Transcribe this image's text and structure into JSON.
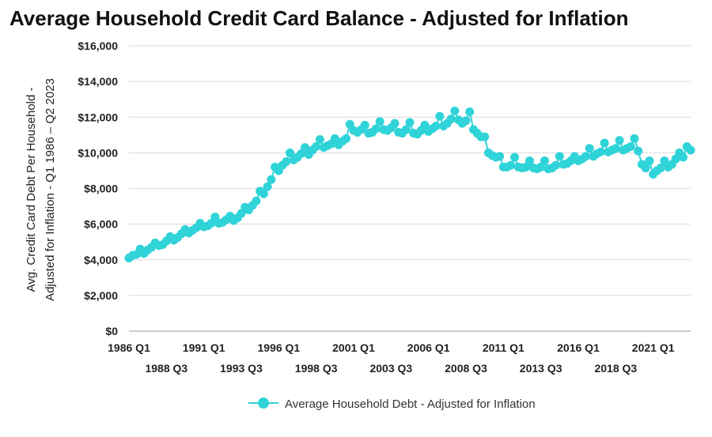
{
  "chart_data": {
    "type": "line",
    "title": "Average Household Credit Card Balance - Adjusted for Inflation",
    "ylabel_line1": "Avg. Credit Card Debt Per Household -",
    "ylabel_line2": "Adjusted for Inflation - Q1 1986 – Q2 2023",
    "xlabel": "",
    "ylim": [
      0,
      16000
    ],
    "yticks": [
      0,
      2000,
      4000,
      6000,
      8000,
      10000,
      12000,
      14000,
      16000
    ],
    "ytick_labels": [
      "$0",
      "$2,000",
      "$4,000",
      "$6,000",
      "$8,000",
      "$10,000",
      "$12,000",
      "$14,000",
      "$16,000"
    ],
    "xticks_upper": [
      {
        "label": "1986 Q1",
        "index": 0
      },
      {
        "label": "1991 Q1",
        "index": 20
      },
      {
        "label": "1996 Q1",
        "index": 40
      },
      {
        "label": "2001 Q1",
        "index": 60
      },
      {
        "label": "2006 Q1",
        "index": 80
      },
      {
        "label": "2011 Q1",
        "index": 100
      },
      {
        "label": "2016 Q1",
        "index": 120
      },
      {
        "label": "2021 Q1",
        "index": 140
      }
    ],
    "xticks_lower": [
      {
        "label": "1988 Q3",
        "index": 10
      },
      {
        "label": "1993 Q3",
        "index": 30
      },
      {
        "label": "1998 Q3",
        "index": 50
      },
      {
        "label": "2003 Q3",
        "index": 70
      },
      {
        "label": "2008 Q3",
        "index": 90
      },
      {
        "label": "2013 Q3",
        "index": 110
      },
      {
        "label": "2018 Q3",
        "index": 130
      }
    ],
    "grid": true,
    "legend_position": "bottom-center",
    "series": [
      {
        "name": "Average Household Debt - Adjusted for Inflation",
        "color": "#2fd3d8",
        "values": [
          4100,
          4250,
          4300,
          4600,
          4350,
          4550,
          4700,
          4950,
          4800,
          4850,
          5050,
          5300,
          5100,
          5250,
          5450,
          5700,
          5500,
          5650,
          5800,
          6050,
          5850,
          5900,
          6050,
          6400,
          6050,
          6100,
          6250,
          6450,
          6200,
          6350,
          6600,
          6950,
          6800,
          7050,
          7300,
          7850,
          7700,
          8100,
          8500,
          9200,
          9000,
          9300,
          9500,
          10000,
          9600,
          9750,
          9950,
          10300,
          9900,
          10150,
          10350,
          10750,
          10300,
          10400,
          10500,
          10800,
          10450,
          10650,
          10800,
          11600,
          11250,
          11150,
          11300,
          11550,
          11100,
          11150,
          11350,
          11750,
          11300,
          11250,
          11400,
          11650,
          11150,
          11100,
          11300,
          11700,
          11100,
          11050,
          11250,
          11550,
          11200,
          11350,
          11500,
          12050,
          11500,
          11650,
          11900,
          12350,
          11850,
          11650,
          11800,
          12300,
          11300,
          11100,
          10900,
          10900,
          10000,
          9850,
          9750,
          9800,
          9200,
          9200,
          9300,
          9750,
          9200,
          9150,
          9200,
          9550,
          9150,
          9100,
          9200,
          9550,
          9100,
          9150,
          9300,
          9800,
          9350,
          9400,
          9550,
          9800,
          9550,
          9650,
          9800,
          10250,
          9800,
          9950,
          10050,
          10550,
          10050,
          10150,
          10250,
          10700,
          10150,
          10250,
          10350,
          10800,
          10100,
          9350,
          9150,
          9550,
          8800,
          9000,
          9150,
          9550,
          9200,
          9350,
          9650,
          10000,
          9750,
          10350,
          10150
        ]
      }
    ]
  }
}
